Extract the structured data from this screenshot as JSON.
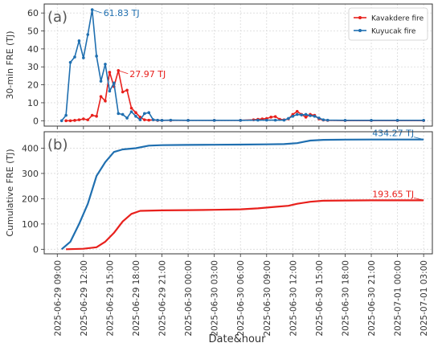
{
  "figure": {
    "xlabel": "Date&hour",
    "x_ticks": [
      "2025-06-29 09:00",
      "2025-06-29 12:00",
      "2025-06-29 15:00",
      "2025-06-29 18:00",
      "2025-06-29 21:00",
      "2025-06-30 00:00",
      "2025-06-30 03:00",
      "2025-06-30 06:00",
      "2025-06-30 09:00",
      "2025-06-30 12:00",
      "2025-06-30 15:00",
      "2025-06-30 18:00",
      "2025-06-30 21:00",
      "2025-07-01 00:00",
      "2025-07-01 03:00"
    ]
  },
  "colors": {
    "kavakdere": "#e8201c",
    "kuyucak": "#1f6fb0"
  },
  "chart_data": [
    {
      "type": "line",
      "panel_label": "(a)",
      "ylabel": "30-min FRE (TJ)",
      "ylim": [
        -3,
        65
      ],
      "yticks": [
        0,
        10,
        20,
        30,
        40,
        50,
        60
      ],
      "xlim": [
        "2025-06-29 07:30",
        "2025-07-01 04:00"
      ],
      "legend": {
        "placement": "top-right"
      },
      "series": [
        {
          "name": "Kavakdere fire",
          "color": "#e8201c",
          "marker": "dot",
          "points": [
            [
              "2025-06-29 10:00",
              0
            ],
            [
              "2025-06-29 10:30",
              0
            ],
            [
              "2025-06-29 11:00",
              0.2
            ],
            [
              "2025-06-29 11:30",
              0.5
            ],
            [
              "2025-06-29 12:00",
              1
            ],
            [
              "2025-06-29 12:30",
              0.5
            ],
            [
              "2025-06-29 13:00",
              3
            ],
            [
              "2025-06-29 13:30",
              2.5
            ],
            [
              "2025-06-29 14:00",
              13.5
            ],
            [
              "2025-06-29 14:30",
              11
            ],
            [
              "2025-06-29 15:00",
              27
            ],
            [
              "2025-06-29 15:30",
              19
            ],
            [
              "2025-06-29 16:00",
              27.97
            ],
            [
              "2025-06-29 16:30",
              16
            ],
            [
              "2025-06-29 17:00",
              17
            ],
            [
              "2025-06-29 17:30",
              7
            ],
            [
              "2025-06-29 18:00",
              4.5
            ],
            [
              "2025-06-29 18:30",
              2
            ],
            [
              "2025-06-29 19:00",
              0.5
            ],
            [
              "2025-06-29 19:30",
              0.3
            ],
            [
              "2025-06-29 20:00",
              0.5
            ],
            [
              "2025-06-29 20:30",
              0.2
            ],
            [
              "2025-06-29 21:00",
              0.2
            ],
            [
              "2025-06-29 22:00",
              0.2
            ],
            [
              "2025-06-30 00:00",
              0.2
            ],
            [
              "2025-06-30 03:00",
              0.2
            ],
            [
              "2025-06-30 06:00",
              0.2
            ],
            [
              "2025-06-30 07:30",
              0.5
            ],
            [
              "2025-06-30 08:00",
              0.8
            ],
            [
              "2025-06-30 08:30",
              1
            ],
            [
              "2025-06-30 09:00",
              1.2
            ],
            [
              "2025-06-30 09:30",
              2
            ],
            [
              "2025-06-30 10:00",
              2.3
            ],
            [
              "2025-06-30 10:30",
              0.8
            ],
            [
              "2025-06-30 11:00",
              0.5
            ],
            [
              "2025-06-30 11:30",
              1
            ],
            [
              "2025-06-30 12:00",
              3.5
            ],
            [
              "2025-06-30 12:30",
              5.2
            ],
            [
              "2025-06-30 13:00",
              3.5
            ],
            [
              "2025-06-30 13:30",
              2
            ],
            [
              "2025-06-30 14:00",
              3.5
            ],
            [
              "2025-06-30 14:30",
              3
            ],
            [
              "2025-06-30 15:00",
              1
            ],
            [
              "2025-06-30 15:30",
              0.4
            ],
            [
              "2025-06-30 16:00",
              0.2
            ],
            [
              "2025-06-30 18:00",
              0.1
            ],
            [
              "2025-06-30 21:00",
              0.1
            ],
            [
              "2025-07-01 00:00",
              0.1
            ],
            [
              "2025-07-01 03:00",
              0.1
            ]
          ]
        },
        {
          "name": "Kuyucak fire",
          "color": "#1f6fb0",
          "marker": "dot",
          "points": [
            [
              "2025-06-29 09:30",
              0
            ],
            [
              "2025-06-29 10:00",
              3
            ],
            [
              "2025-06-29 10:30",
              32.5
            ],
            [
              "2025-06-29 11:00",
              35.5
            ],
            [
              "2025-06-29 11:30",
              44.5
            ],
            [
              "2025-06-29 12:00",
              35
            ],
            [
              "2025-06-29 12:30",
              48
            ],
            [
              "2025-06-29 13:00",
              61.83
            ],
            [
              "2025-06-29 13:30",
              36
            ],
            [
              "2025-06-29 14:00",
              22
            ],
            [
              "2025-06-29 14:30",
              31.5
            ],
            [
              "2025-06-29 15:00",
              16.5
            ],
            [
              "2025-06-29 15:30",
              21
            ],
            [
              "2025-06-29 16:00",
              4
            ],
            [
              "2025-06-29 16:30",
              3.5
            ],
            [
              "2025-06-29 17:00",
              1.5
            ],
            [
              "2025-06-29 17:30",
              5
            ],
            [
              "2025-06-29 18:00",
              2.5
            ],
            [
              "2025-06-29 18:30",
              0.5
            ],
            [
              "2025-06-29 19:00",
              4
            ],
            [
              "2025-06-29 19:30",
              4.5
            ],
            [
              "2025-06-29 20:00",
              0.5
            ],
            [
              "2025-06-29 20:30",
              0.3
            ],
            [
              "2025-06-29 21:00",
              0.2
            ],
            [
              "2025-06-29 22:00",
              0.3
            ],
            [
              "2025-06-30 00:00",
              0.2
            ],
            [
              "2025-06-30 03:00",
              0.2
            ],
            [
              "2025-06-30 06:00",
              0.2
            ],
            [
              "2025-06-30 08:00",
              0.3
            ],
            [
              "2025-06-30 09:00",
              0.3
            ],
            [
              "2025-06-30 10:00",
              0.3
            ],
            [
              "2025-06-30 11:00",
              0.3
            ],
            [
              "2025-06-30 11:30",
              1.3
            ],
            [
              "2025-06-30 12:00",
              2.5
            ],
            [
              "2025-06-30 12:30",
              3.5
            ],
            [
              "2025-06-30 13:00",
              3.2
            ],
            [
              "2025-06-30 13:30",
              3.5
            ],
            [
              "2025-06-30 14:00",
              2.8
            ],
            [
              "2025-06-30 14:30",
              2.5
            ],
            [
              "2025-06-30 15:00",
              1.5
            ],
            [
              "2025-06-30 15:30",
              0.5
            ],
            [
              "2025-06-30 16:00",
              0.3
            ],
            [
              "2025-06-30 18:00",
              0.2
            ],
            [
              "2025-06-30 21:00",
              0.2
            ],
            [
              "2025-07-01 00:00",
              0.2
            ],
            [
              "2025-07-01 03:00",
              0.2
            ]
          ]
        }
      ],
      "annotations": [
        {
          "text": "61.83 TJ",
          "series": "Kuyucak fire",
          "at": [
            "2025-06-29 13:00",
            61.83
          ],
          "color": "#1f6fb0"
        },
        {
          "text": "27.97 TJ",
          "series": "Kavakdere fire",
          "at": [
            "2025-06-29 16:00",
            27.97
          ],
          "color": "#e8201c"
        }
      ]
    },
    {
      "type": "line",
      "panel_label": "(b)",
      "ylabel": "Cumulative FRE (TJ)",
      "ylim": [
        -18,
        465
      ],
      "yticks": [
        0,
        100,
        200,
        300,
        400
      ],
      "xlim": [
        "2025-06-29 07:30",
        "2025-07-01 04:00"
      ],
      "series": [
        {
          "name": "Kavakdere fire",
          "color": "#e8201c",
          "points": [
            [
              "2025-06-29 10:00",
              0
            ],
            [
              "2025-06-29 12:00",
              2
            ],
            [
              "2025-06-29 13:30",
              8
            ],
            [
              "2025-06-29 14:30",
              30
            ],
            [
              "2025-06-29 15:30",
              65
            ],
            [
              "2025-06-29 16:30",
              110
            ],
            [
              "2025-06-29 17:30",
              140
            ],
            [
              "2025-06-29 18:30",
              152
            ],
            [
              "2025-06-29 21:00",
              154
            ],
            [
              "2025-06-30 00:00",
              155
            ],
            [
              "2025-06-30 03:00",
              156
            ],
            [
              "2025-06-30 06:00",
              158
            ],
            [
              "2025-06-30 08:00",
              162
            ],
            [
              "2025-06-30 10:00",
              168
            ],
            [
              "2025-06-30 11:30",
              172
            ],
            [
              "2025-06-30 12:30",
              180
            ],
            [
              "2025-06-30 14:00",
              188
            ],
            [
              "2025-06-30 15:30",
              192
            ],
            [
              "2025-06-30 18:00",
              193
            ],
            [
              "2025-06-30 21:00",
              193.5
            ],
            [
              "2025-07-01 00:00",
              193.6
            ],
            [
              "2025-07-01 03:00",
              193.65
            ]
          ]
        },
        {
          "name": "Kuyucak fire",
          "color": "#1f6fb0",
          "points": [
            [
              "2025-06-29 09:30",
              0
            ],
            [
              "2025-06-29 10:30",
              30
            ],
            [
              "2025-06-29 11:30",
              100
            ],
            [
              "2025-06-29 12:30",
              180
            ],
            [
              "2025-06-29 13:30",
              290
            ],
            [
              "2025-06-29 14:30",
              345
            ],
            [
              "2025-06-29 15:30",
              385
            ],
            [
              "2025-06-29 16:30",
              395
            ],
            [
              "2025-06-29 18:00",
              400
            ],
            [
              "2025-06-29 19:30",
              410
            ],
            [
              "2025-06-29 21:00",
              412
            ],
            [
              "2025-06-30 00:00",
              413
            ],
            [
              "2025-06-30 03:00",
              413.5
            ],
            [
              "2025-06-30 06:00",
              414
            ],
            [
              "2025-06-30 09:00",
              415
            ],
            [
              "2025-06-30 11:00",
              416
            ],
            [
              "2025-06-30 12:30",
              420
            ],
            [
              "2025-06-30 14:00",
              430
            ],
            [
              "2025-06-30 15:30",
              433
            ],
            [
              "2025-06-30 18:00",
              434
            ],
            [
              "2025-06-30 21:00",
              434.2
            ],
            [
              "2025-07-01 00:00",
              434.25
            ],
            [
              "2025-07-01 03:00",
              434.27
            ]
          ]
        }
      ],
      "annotations": [
        {
          "text": "434.27 TJ",
          "series": "Kuyucak fire",
          "at": [
            "2025-07-01 03:00",
            434.27
          ],
          "color": "#1f6fb0"
        },
        {
          "text": "193.65 TJ",
          "series": "Kavakdere fire",
          "at": [
            "2025-07-01 03:00",
            193.65
          ],
          "color": "#e8201c"
        }
      ]
    }
  ]
}
